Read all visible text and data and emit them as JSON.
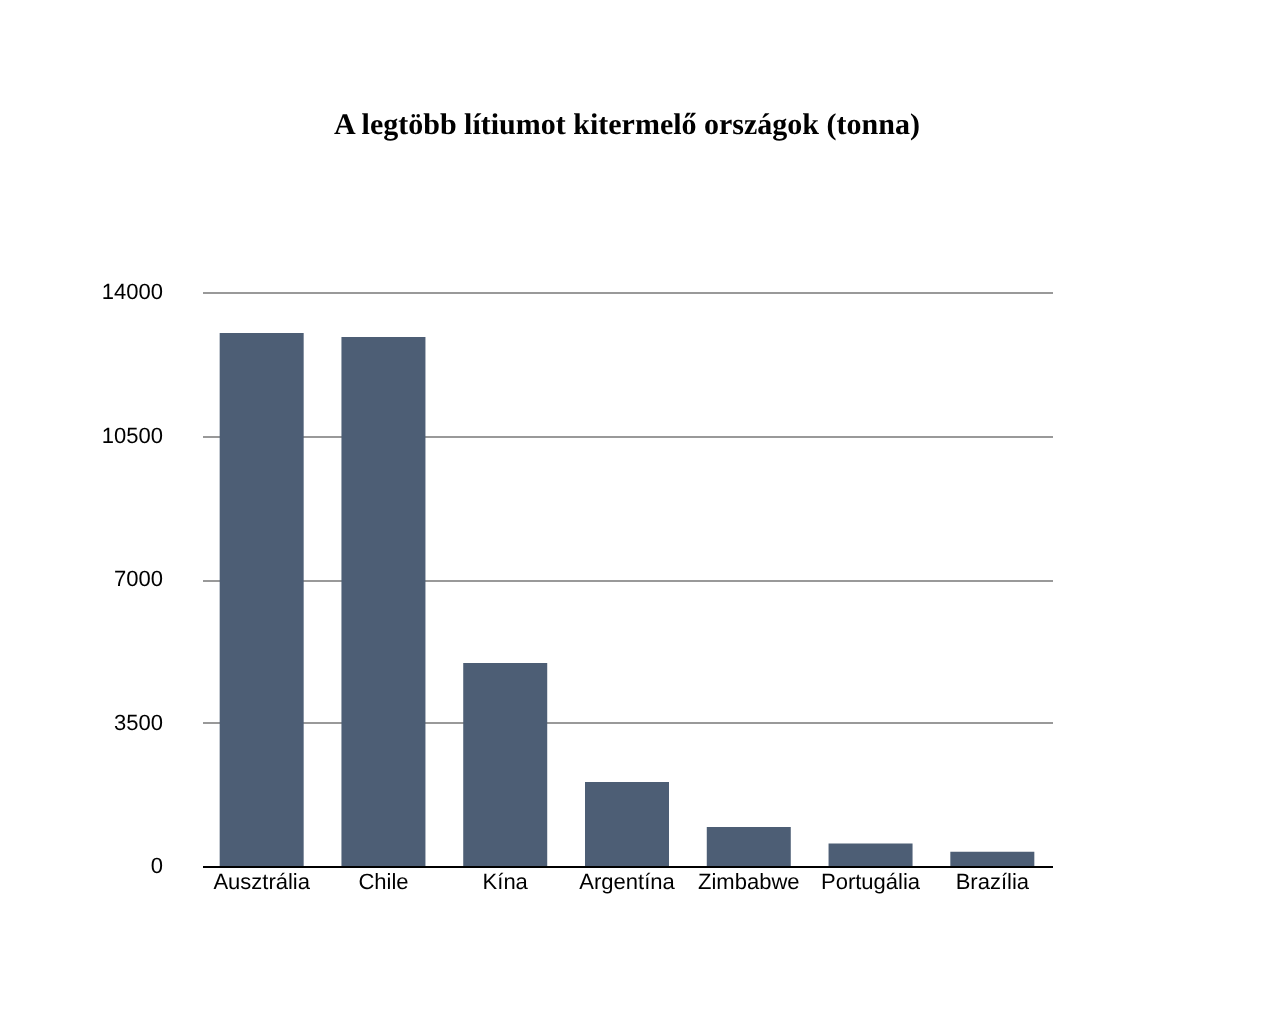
{
  "chart_data": {
    "type": "bar",
    "title": "A legtöbb lítiumot kitermelő országok (tonna)",
    "categories": [
      "Ausztrália",
      "Chile",
      "Kína",
      "Argentína",
      "Zimbabwe",
      "Portugália",
      "Brazília"
    ],
    "values": [
      13000,
      12900,
      4950,
      2050,
      950,
      550,
      350
    ],
    "color": "#4d5e75",
    "ylim": [
      0,
      14000
    ],
    "yticks": [
      0,
      3500,
      7000,
      10500,
      14000
    ],
    "grid": "y"
  }
}
